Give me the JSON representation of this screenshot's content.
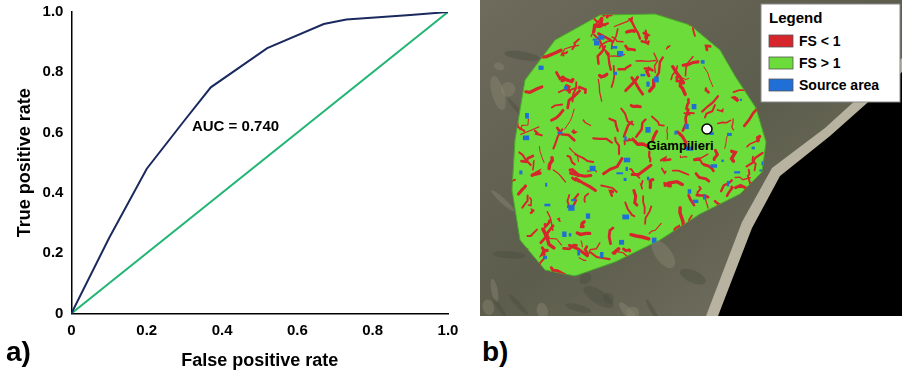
{
  "chart_data": {
    "type": "line",
    "panel": "a)",
    "x_label": "False positive rate",
    "y_label": "True positive rate",
    "annotation": "AUC = 0.740",
    "series": [
      {
        "color": "#1b2a5e",
        "marker": "none",
        "line_style": "solid",
        "x": [
          0,
          0.1,
          0.2,
          0.3,
          0.37,
          0.52,
          0.67,
          0.73,
          0.9,
          1
        ],
        "values": [
          0,
          0.25,
          0.48,
          0.64,
          0.75,
          0.88,
          0.96,
          0.975,
          0.99,
          1
        ]
      },
      {
        "color": "#21b573",
        "marker": "none",
        "line_style": "solid",
        "x": [
          0,
          1
        ],
        "values": [
          0,
          1
        ]
      }
    ],
    "xlim": [
      0,
      1
    ],
    "ylim": [
      0,
      1
    ],
    "xticks": [
      0,
      0.2,
      0.4,
      0.6,
      0.8,
      {
        "value": 1,
        "label": "1.0"
      }
    ],
    "yticks": [
      0,
      0.2,
      0.4,
      0.6,
      0.8,
      {
        "value": 1,
        "label": "1.0"
      }
    ],
    "grid": false
  },
  "map": {
    "panel": "b)",
    "legend": {
      "title": "Legend",
      "items": [
        {
          "label": "FS < 1",
          "color": "#d7262b"
        },
        {
          "label": "FS > 1",
          "color": "#6cdc3a"
        },
        {
          "label": "Source area",
          "color": "#1f6fd6"
        }
      ]
    },
    "places": [
      {
        "label": "Giampilieri"
      }
    ]
  }
}
